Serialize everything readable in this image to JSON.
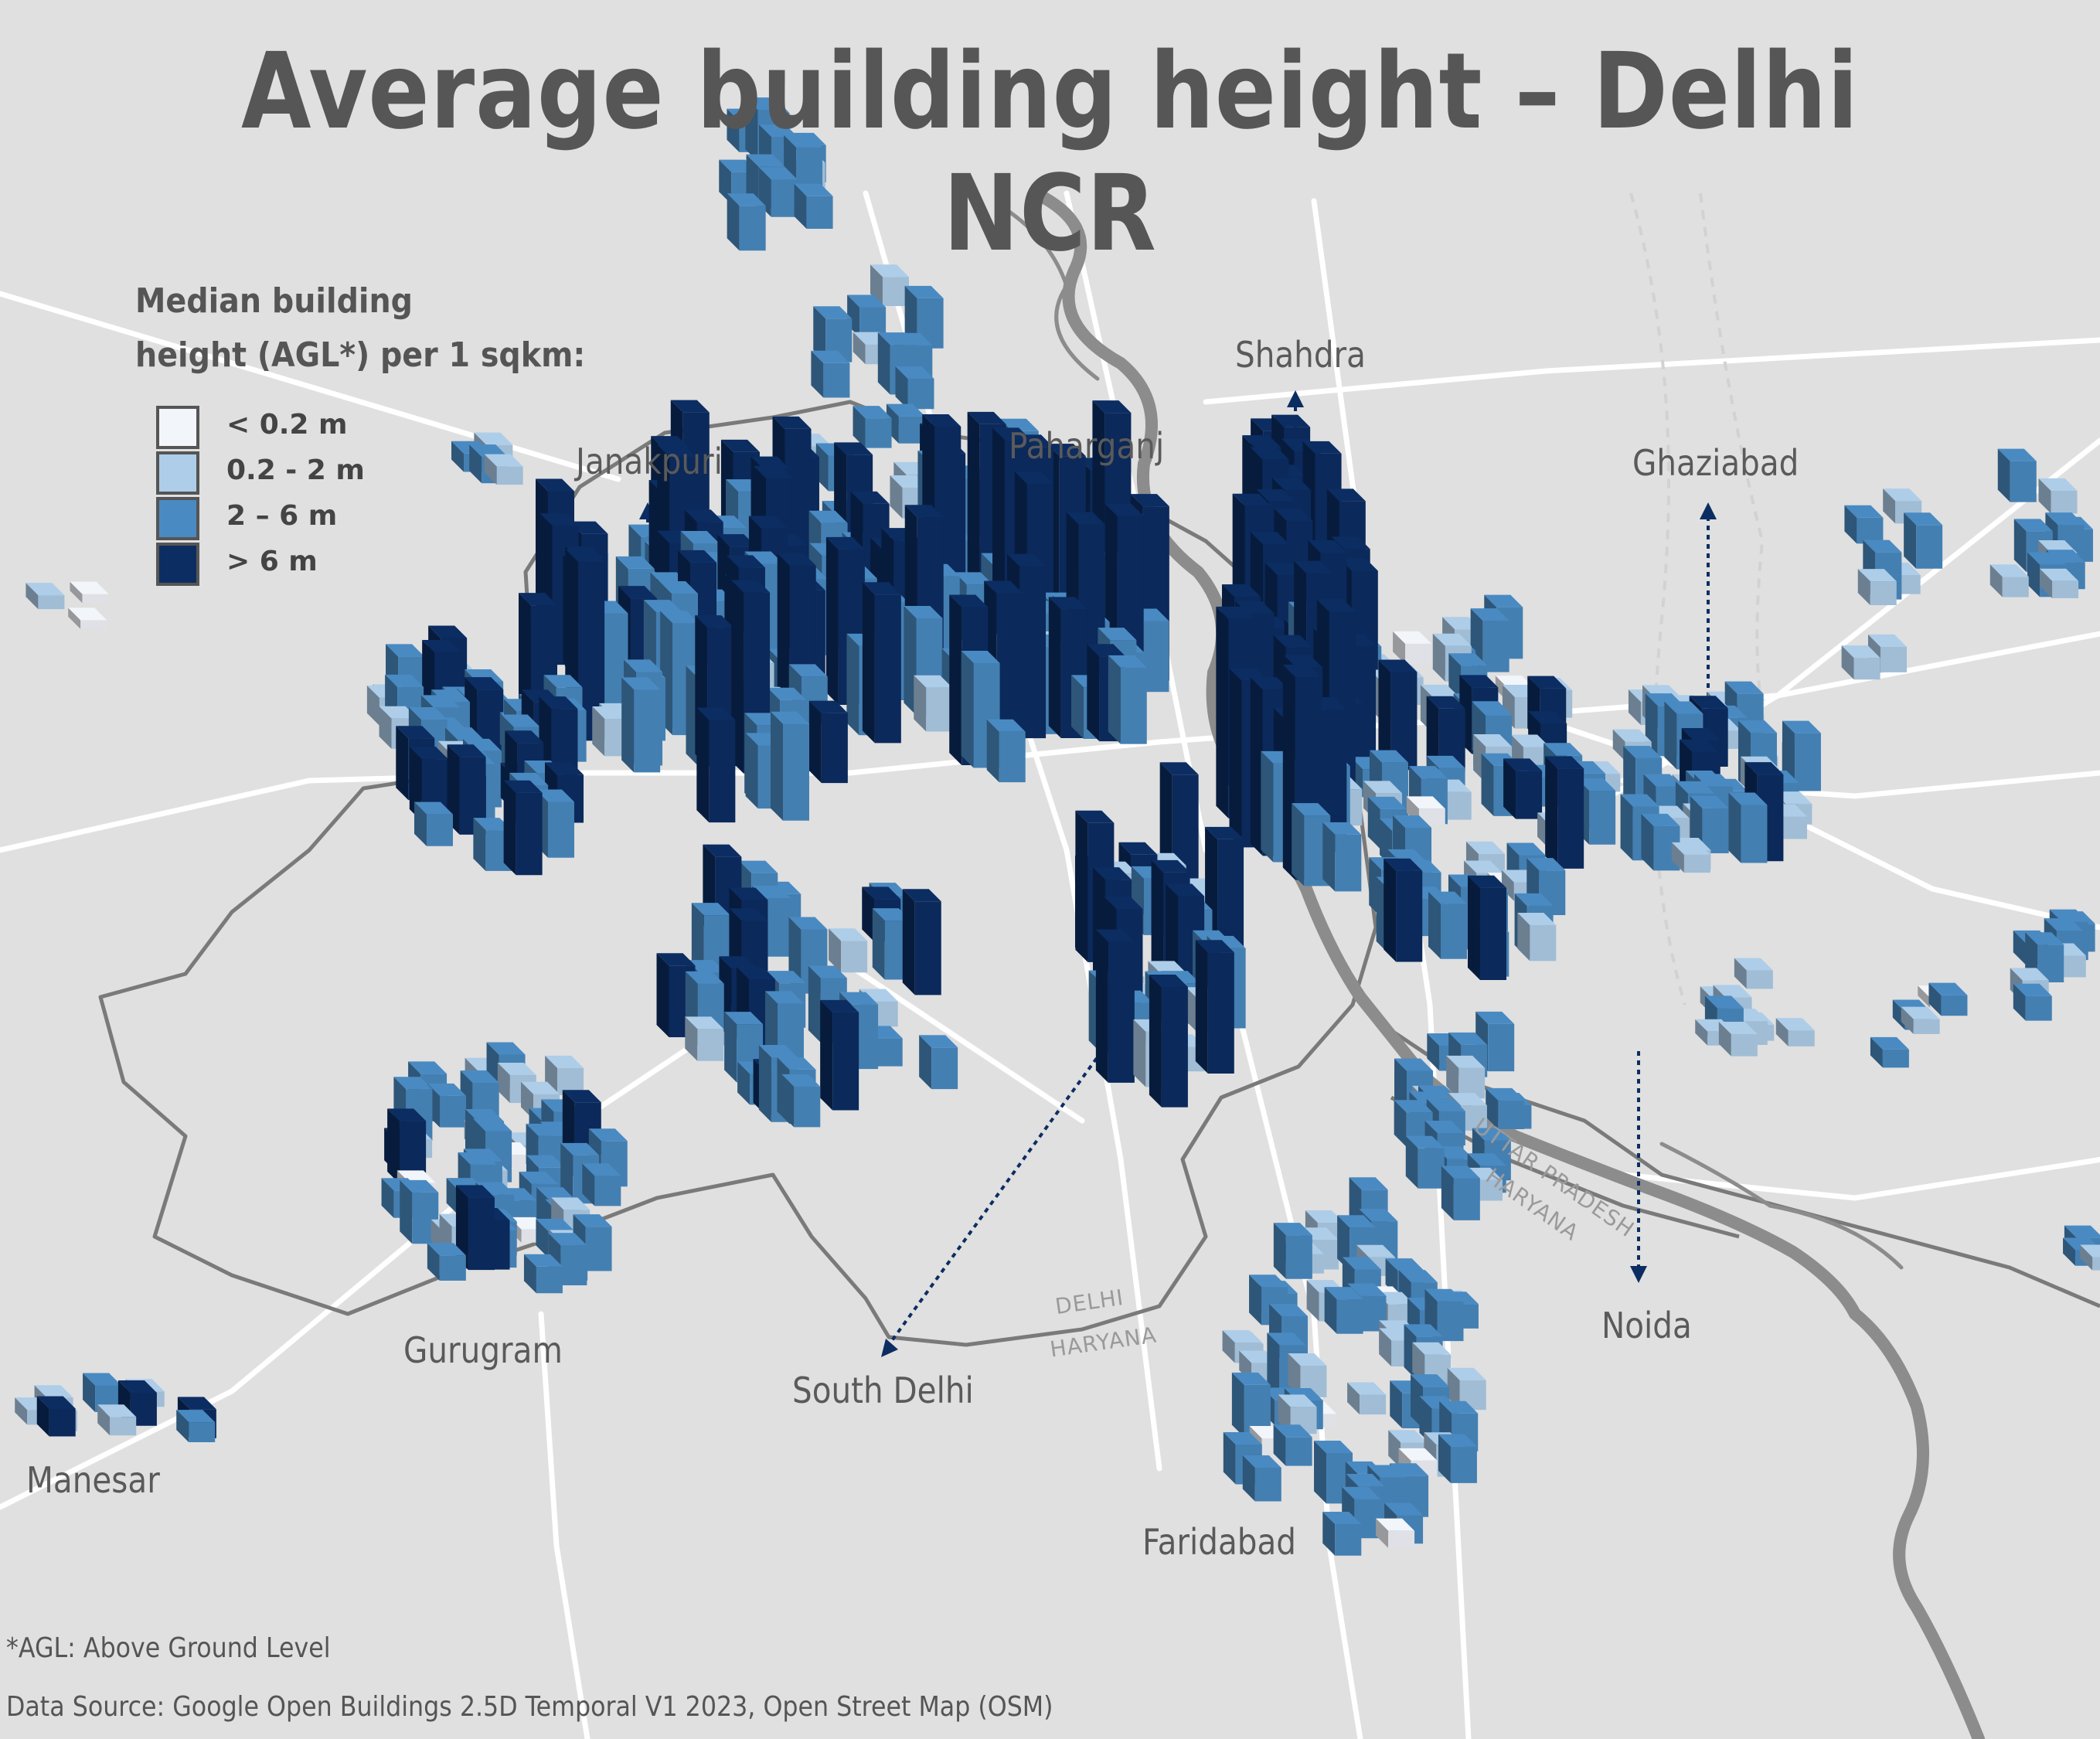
{
  "title": "Average building height – Delhi NCR",
  "legend": {
    "title_line1": "Median building",
    "title_line2": "height (AGL*) per 1 sqkm:",
    "classes": [
      {
        "label": "< 0.2 m",
        "color": "#f2f5fa"
      },
      {
        "label": "0.2 - 2 m",
        "color": "#aecde8"
      },
      {
        "label": "2 – 6 m",
        "color": "#4a8ac2"
      },
      {
        "label": "> 6 m",
        "color": "#0c2d62"
      }
    ]
  },
  "places": {
    "janakpuri": "Janakpuri",
    "paharganj": "Paharganj",
    "shahdra": "Shahdra",
    "ghaziabad": "Ghaziabad",
    "gurugram": "Gurugram",
    "manesar": "Manesar",
    "south_delhi": "South Delhi",
    "noida": "Noida",
    "faridabad": "Faridabad"
  },
  "borders": {
    "delhi": "DELHI",
    "haryana": "HARYANA",
    "uttar_pradesh": "UTTAR PRADESH",
    "haryana_east": "HARYANA"
  },
  "footnotes": {
    "agl": "*AGL: Above Ground Level",
    "source": "Data Source: Google Open Buildings 2.5D Temporal V1 2023, Open Street Map (OSM)"
  },
  "colors": {
    "background": "#e0e0e0",
    "roads": "#ffffff",
    "boundary": "#7a7a7a",
    "river": "#8c8c8c",
    "pointer": "#0c2d62"
  }
}
